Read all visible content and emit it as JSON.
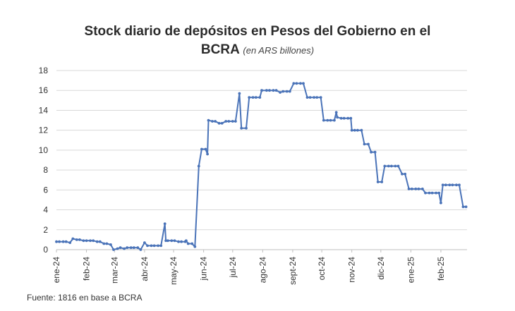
{
  "title_line1": "Stock diario de depósitos en Pesos del Gobierno en el",
  "title_line2": "BCRA",
  "title_unit": "(en ARS billones)",
  "source": "Fuente: 1816 en base a BCRA",
  "chart_data": {
    "type": "line",
    "title": "Stock diario de depósitos en Pesos del Gobierno en el BCRA",
    "subtitle": "(en ARS billones)",
    "ylim": [
      0,
      18
    ],
    "yticks": [
      0,
      2,
      4,
      6,
      8,
      10,
      12,
      14,
      16,
      18
    ],
    "grid": true,
    "line_color": "#4a73b8",
    "x_tick_labels": [
      "ene-24",
      "feb-24",
      "mar-24",
      "abr-24",
      "may-24",
      "jun-24",
      "jul-24",
      "ago-24",
      "sept-24",
      "oct-24",
      "nov-24",
      "dic-24",
      "ene-25",
      "feb-25"
    ],
    "series": [
      {
        "points": [
          [
            "2024-01-01",
            0.8
          ],
          [
            "2024-01-04",
            0.8
          ],
          [
            "2024-01-08",
            0.8
          ],
          [
            "2024-01-11",
            0.8
          ],
          [
            "2024-01-15",
            0.7
          ],
          [
            "2024-01-18",
            1.1
          ],
          [
            "2024-01-22",
            1.0
          ],
          [
            "2024-01-25",
            1.0
          ],
          [
            "2024-01-29",
            0.9
          ],
          [
            "2024-02-01",
            0.9
          ],
          [
            "2024-02-05",
            0.9
          ],
          [
            "2024-02-08",
            0.9
          ],
          [
            "2024-02-12",
            0.8
          ],
          [
            "2024-02-15",
            0.8
          ],
          [
            "2024-02-19",
            0.6
          ],
          [
            "2024-02-22",
            0.6
          ],
          [
            "2024-02-26",
            0.5
          ],
          [
            "2024-02-29",
            0.0
          ],
          [
            "2024-03-04",
            0.1
          ],
          [
            "2024-03-07",
            0.2
          ],
          [
            "2024-03-11",
            0.1
          ],
          [
            "2024-03-14",
            0.2
          ],
          [
            "2024-03-18",
            0.2
          ],
          [
            "2024-03-21",
            0.2
          ],
          [
            "2024-03-25",
            0.2
          ],
          [
            "2024-03-28",
            0.0
          ],
          [
            "2024-04-01",
            0.7
          ],
          [
            "2024-04-04",
            0.4
          ],
          [
            "2024-04-08",
            0.4
          ],
          [
            "2024-04-11",
            0.4
          ],
          [
            "2024-04-15",
            0.4
          ],
          [
            "2024-04-18",
            0.4
          ],
          [
            "2024-04-22",
            2.6
          ],
          [
            "2024-04-23",
            0.9
          ],
          [
            "2024-04-25",
            0.9
          ],
          [
            "2024-04-29",
            0.9
          ],
          [
            "2024-05-02",
            0.9
          ],
          [
            "2024-05-06",
            0.8
          ],
          [
            "2024-05-09",
            0.8
          ],
          [
            "2024-05-13",
            0.8
          ],
          [
            "2024-05-14",
            0.9
          ],
          [
            "2024-05-16",
            0.6
          ],
          [
            "2024-05-20",
            0.6
          ],
          [
            "2024-05-23",
            0.3
          ],
          [
            "2024-05-27",
            8.4
          ],
          [
            "2024-05-30",
            10.1
          ],
          [
            "2024-06-03",
            10.1
          ],
          [
            "2024-06-05",
            9.6
          ],
          [
            "2024-06-06",
            13.0
          ],
          [
            "2024-06-10",
            12.9
          ],
          [
            "2024-06-13",
            12.9
          ],
          [
            "2024-06-17",
            12.7
          ],
          [
            "2024-06-20",
            12.7
          ],
          [
            "2024-06-24",
            12.9
          ],
          [
            "2024-06-27",
            12.9
          ],
          [
            "2024-07-01",
            12.9
          ],
          [
            "2024-07-04",
            12.9
          ],
          [
            "2024-07-08",
            15.7
          ],
          [
            "2024-07-10",
            12.2
          ],
          [
            "2024-07-15",
            12.2
          ],
          [
            "2024-07-18",
            15.3
          ],
          [
            "2024-07-22",
            15.3
          ],
          [
            "2024-07-25",
            15.3
          ],
          [
            "2024-07-29",
            15.3
          ],
          [
            "2024-07-31",
            16.0
          ],
          [
            "2024-08-05",
            16.0
          ],
          [
            "2024-08-08",
            16.0
          ],
          [
            "2024-08-12",
            16.0
          ],
          [
            "2024-08-15",
            16.0
          ],
          [
            "2024-08-19",
            15.8
          ],
          [
            "2024-08-22",
            15.9
          ],
          [
            "2024-08-26",
            15.9
          ],
          [
            "2024-08-29",
            15.9
          ],
          [
            "2024-09-02",
            16.7
          ],
          [
            "2024-09-05",
            16.7
          ],
          [
            "2024-09-09",
            16.7
          ],
          [
            "2024-09-12",
            16.7
          ],
          [
            "2024-09-16",
            15.3
          ],
          [
            "2024-09-19",
            15.3
          ],
          [
            "2024-09-23",
            15.3
          ],
          [
            "2024-09-26",
            15.3
          ],
          [
            "2024-09-30",
            15.3
          ],
          [
            "2024-10-03",
            13.0
          ],
          [
            "2024-10-07",
            13.0
          ],
          [
            "2024-10-10",
            13.0
          ],
          [
            "2024-10-14",
            13.0
          ],
          [
            "2024-10-16",
            13.8
          ],
          [
            "2024-10-17",
            13.3
          ],
          [
            "2024-10-21",
            13.2
          ],
          [
            "2024-10-24",
            13.2
          ],
          [
            "2024-10-28",
            13.2
          ],
          [
            "2024-10-31",
            13.2
          ],
          [
            "2024-11-01",
            12.0
          ],
          [
            "2024-11-04",
            12.0
          ],
          [
            "2024-11-07",
            12.0
          ],
          [
            "2024-11-11",
            12.0
          ],
          [
            "2024-11-14",
            10.6
          ],
          [
            "2024-11-18",
            10.6
          ],
          [
            "2024-11-21",
            9.8
          ],
          [
            "2024-11-25",
            9.8
          ],
          [
            "2024-11-28",
            6.8
          ],
          [
            "2024-12-02",
            6.8
          ],
          [
            "2024-12-05",
            8.4
          ],
          [
            "2024-12-09",
            8.4
          ],
          [
            "2024-12-12",
            8.4
          ],
          [
            "2024-12-16",
            8.4
          ],
          [
            "2024-12-19",
            8.4
          ],
          [
            "2024-12-23",
            7.6
          ],
          [
            "2024-12-26",
            7.6
          ],
          [
            "2024-12-30",
            6.1
          ],
          [
            "2025-01-02",
            6.1
          ],
          [
            "2025-01-06",
            6.1
          ],
          [
            "2025-01-09",
            6.1
          ],
          [
            "2025-01-13",
            6.1
          ],
          [
            "2025-01-16",
            5.7
          ],
          [
            "2025-01-20",
            5.7
          ],
          [
            "2025-01-23",
            5.7
          ],
          [
            "2025-01-27",
            5.7
          ],
          [
            "2025-01-30",
            5.7
          ],
          [
            "2025-02-01",
            4.7
          ],
          [
            "2025-02-03",
            6.5
          ],
          [
            "2025-02-06",
            6.5
          ],
          [
            "2025-02-10",
            6.5
          ],
          [
            "2025-02-13",
            6.5
          ],
          [
            "2025-02-17",
            6.5
          ],
          [
            "2025-02-20",
            6.5
          ],
          [
            "2025-02-24",
            4.3
          ],
          [
            "2025-02-27",
            4.3
          ]
        ]
      }
    ]
  }
}
